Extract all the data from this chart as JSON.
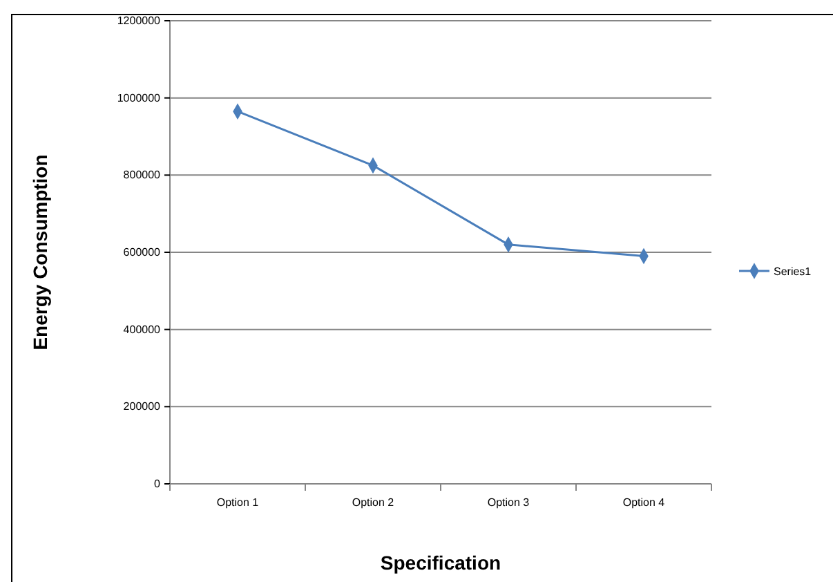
{
  "chart_data": {
    "type": "line",
    "xlabel": "Specification",
    "ylabel": "Energy Consumption",
    "categories": [
      "Option 1",
      "Option 2",
      "Option 3",
      "Option 4"
    ],
    "series": [
      {
        "name": "Series1",
        "color": "#4a7ebb",
        "values": [
          965000,
          825000,
          620000,
          590000
        ]
      }
    ],
    "ylim": [
      0,
      1200000
    ],
    "yticks": [
      0,
      200000,
      400000,
      600000,
      800000,
      1000000,
      1200000
    ],
    "grid": "y",
    "legend": "right",
    "marker": "diamond",
    "line_style": "solid"
  }
}
